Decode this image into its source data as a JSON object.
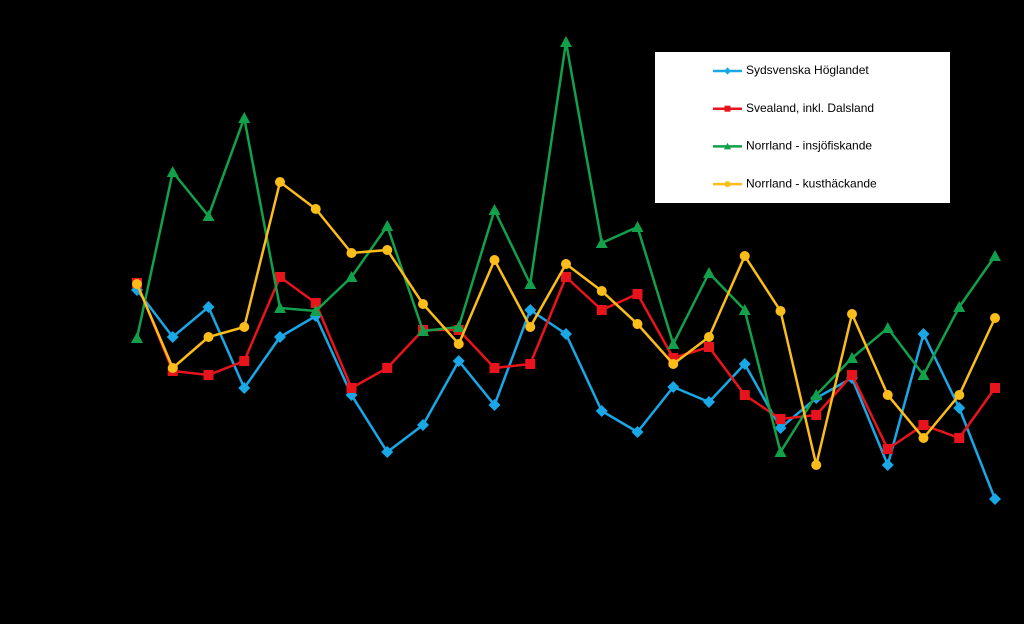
{
  "chart_data": {
    "type": "line",
    "categories": [
      null,
      null,
      null,
      null,
      null,
      null,
      null,
      null,
      null,
      null,
      null,
      null,
      null,
      null,
      null,
      null,
      null,
      null,
      null,
      null,
      null,
      null,
      null,
      null,
      null
    ],
    "ylim": [
      0,
      106
    ],
    "series": [
      {
        "name": "Sydsvenska Höglandet",
        "color": "#1aa7e6",
        "marker": "diamond",
        "values": [
          54,
          44.6,
          50.6,
          34.4,
          44.6,
          48.8,
          33,
          21.6,
          27,
          39.8,
          31,
          50,
          45.2,
          29.8,
          25.6,
          34.6,
          31.6,
          39.2,
          26.4,
          32.4,
          36.4,
          19,
          45.2,
          30.4,
          12.2
        ]
      },
      {
        "name": "Svealand, inkl. Dalsland",
        "color": "#e8141c",
        "marker": "square",
        "values": [
          55.4,
          37.8,
          37,
          39.8,
          56.6,
          51.4,
          34.4,
          38.4,
          46,
          46,
          38.4,
          39.2,
          56.6,
          50,
          53.2,
          40.4,
          42.6,
          33,
          28.2,
          29,
          37,
          22.2,
          27,
          24.4,
          34.4
        ]
      },
      {
        "name": "Norrland - insjöfiskande",
        "color": "#12a04a",
        "marker": "triangle",
        "values": [
          44.4,
          77.6,
          68.8,
          88.4,
          50.4,
          49.8,
          56.6,
          66.8,
          45.8,
          46.6,
          70,
          55.2,
          103.6,
          63.4,
          66.6,
          43.2,
          57.4,
          50,
          21.6,
          33,
          40.4,
          46.4,
          37,
          50.6,
          60.8
        ]
      },
      {
        "name": "Norrland - kusthäckande",
        "color": "#fbbd1a",
        "marker": "circle",
        "values": [
          55.2,
          38.4,
          44.6,
          46.6,
          75.6,
          70.2,
          61.4,
          62,
          51.2,
          43.2,
          60,
          46.6,
          59.2,
          53.8,
          47.2,
          39.2,
          44.6,
          60.8,
          49.8,
          19,
          49.2,
          33,
          24.4,
          33,
          48.4
        ]
      }
    ]
  }
}
